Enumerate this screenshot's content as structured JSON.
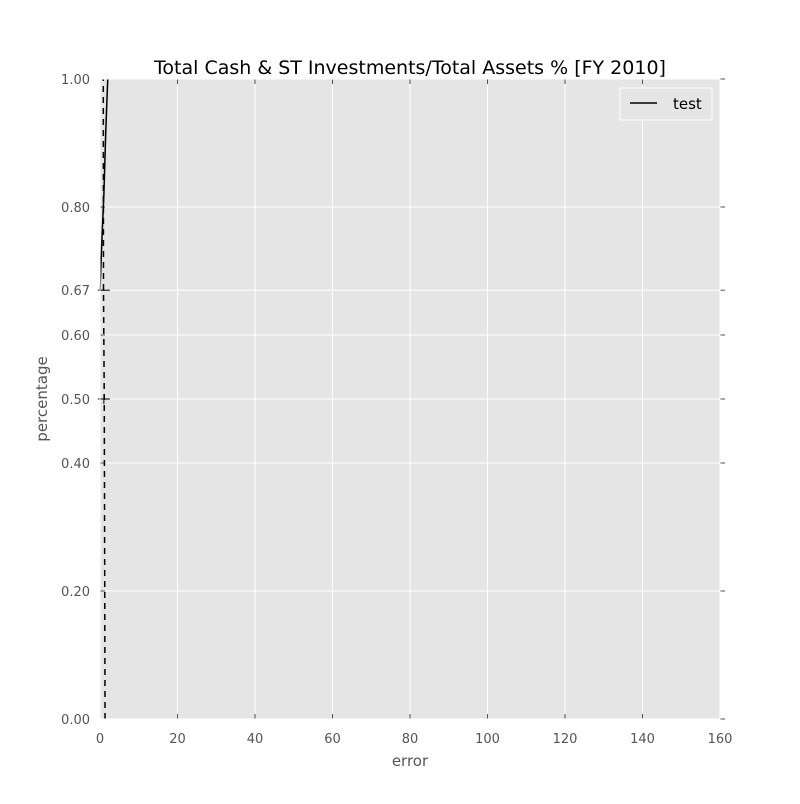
{
  "chart_data": {
    "type": "line",
    "title": "Total Cash & ST Investments/Total Assets % [FY 2010]",
    "xlabel": "error",
    "ylabel": "percentage",
    "xlim": [
      0,
      160
    ],
    "ylim": [
      0,
      1.0
    ],
    "x_ticks": [
      0,
      20,
      40,
      60,
      80,
      100,
      120,
      140,
      160
    ],
    "x_tick_labels": [
      "0",
      "20",
      "40",
      "60",
      "80",
      "100",
      "120",
      "140",
      "160"
    ],
    "y_ticks": [
      0.0,
      0.2,
      0.4,
      0.5,
      0.6,
      0.67,
      0.8,
      1.0
    ],
    "y_tick_labels": [
      "0.00",
      "0.20",
      "0.40",
      "0.50",
      "0.60",
      "0.67",
      "0.80",
      "1.00"
    ],
    "grid": true,
    "background_color": "#e5e5e5",
    "grid_color": "#ffffff",
    "legend": {
      "position": "top-right",
      "entries": [
        "test"
      ]
    },
    "series": [
      {
        "name": "test",
        "style": "solid",
        "color": "#000000",
        "x": [
          0.0,
          0.5,
          1.0,
          1.5,
          2.0
        ],
        "y": [
          0.67,
          0.75,
          0.82,
          0.92,
          1.0
        ]
      },
      {
        "style": "dashed",
        "color": "#000000",
        "x": [
          1.3,
          1.1,
          0.9,
          0.85
        ],
        "y": [
          0.0,
          0.5,
          0.67,
          1.0
        ]
      }
    ],
    "markers": [
      {
        "x": 1.0,
        "y": 0.67,
        "symbol": "hline"
      },
      {
        "x": 1.0,
        "y": 0.5,
        "symbol": "plus"
      }
    ]
  }
}
